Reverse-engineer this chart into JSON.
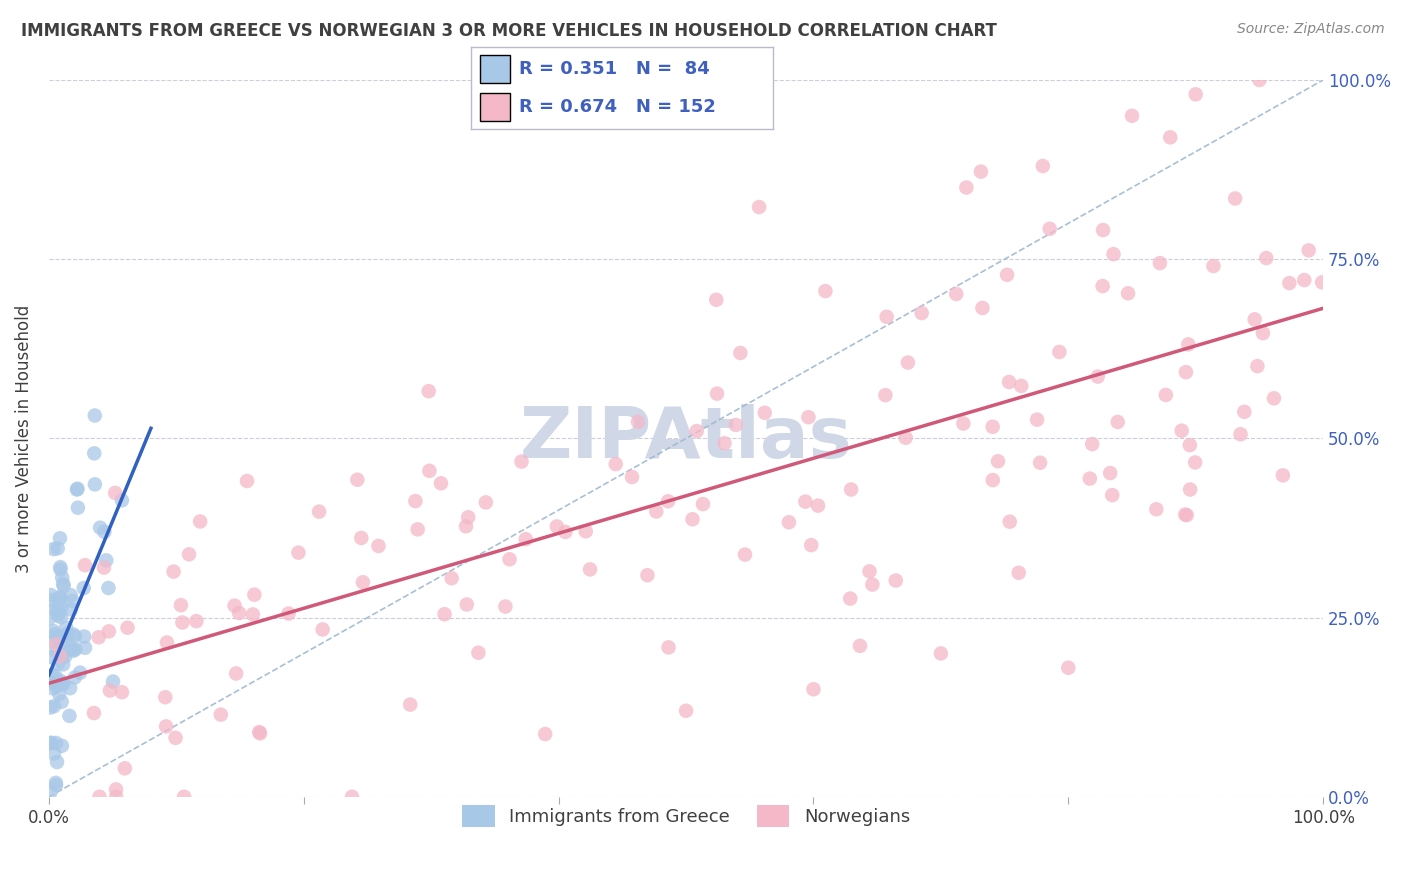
{
  "title": "IMMIGRANTS FROM GREECE VS NORWEGIAN 3 OR MORE VEHICLES IN HOUSEHOLD CORRELATION CHART",
  "source": "Source: ZipAtlas.com",
  "ylabel": "3 or more Vehicles in Household",
  "legend_labels": [
    "Immigrants from Greece",
    "Norwegians"
  ],
  "blue_R": 0.351,
  "blue_N": 84,
  "pink_R": 0.674,
  "pink_N": 152,
  "blue_color": "#a8c8e8",
  "pink_color": "#f4b8c8",
  "blue_line_color": "#3060c0",
  "pink_line_color": "#d05878",
  "diag_color": "#a0b8d0",
  "grid_color": "#c8c8d8",
  "background_color": "#ffffff",
  "tick_color": "#4060c0",
  "title_color": "#404040",
  "watermark_color": "#d0d8e8",
  "y_ticks": [
    0,
    25,
    50,
    75,
    100
  ],
  "y_tick_labels": [
    "0.0%",
    "25.0%",
    "50.0%",
    "75.0%",
    "100.0%"
  ],
  "x_tick_labels": [
    "0.0%",
    "100.0%"
  ],
  "xlim": [
    0,
    100
  ],
  "ylim": [
    0,
    100
  ]
}
